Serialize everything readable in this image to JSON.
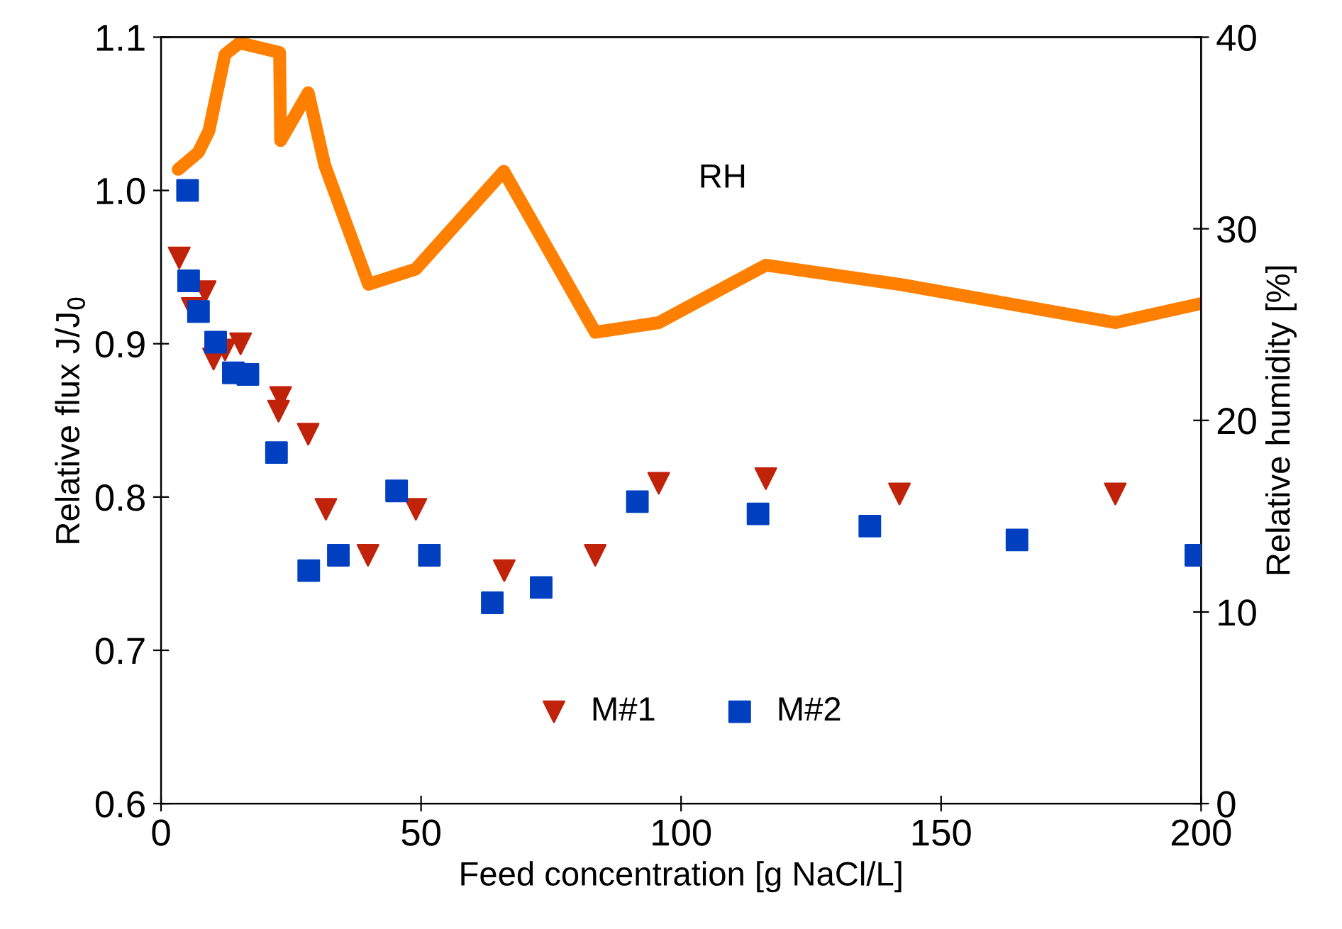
{
  "chart_data": {
    "type": "scatter",
    "xlabel": "Feed concentration [g NaCl/L]",
    "ylabel": "Relative flux J/J$_{0}$",
    "y2label": "Relative humidity [%]",
    "xlim": [
      0,
      200
    ],
    "xticks": [
      0,
      50,
      100,
      150,
      200
    ],
    "ylim": [
      0.6,
      1.1
    ],
    "yticks": [
      0.6,
      0.7,
      0.8,
      0.9,
      {
        "value": 1.0,
        "label": "1.0"
      },
      1.1
    ],
    "y2lim": [
      0,
      40
    ],
    "y2ticks": [
      0,
      10,
      20,
      30,
      40
    ],
    "grid": false,
    "legend": "bottom",
    "annotations": [
      "RH"
    ],
    "series": [
      {
        "name": "M#1",
        "marker": "triangle",
        "color": "#c0220a",
        "x": [
          3.5,
          6,
          8.5,
          10.1,
          12.3,
          15.3,
          22.6,
          23,
          28.3,
          31.7,
          39.8,
          49,
          66,
          83.5,
          95.7,
          116.3,
          142,
          183.5
        ],
        "values": [
          0.956,
          0.923,
          0.934,
          0.89,
          0.896,
          0.9,
          0.856,
          0.865,
          0.841,
          0.792,
          0.762,
          0.792,
          0.752,
          0.762,
          0.809,
          0.812,
          0.802,
          0.802
        ]
      },
      {
        "name": "M#2",
        "marker": "square",
        "color": "#0040c0",
        "x": [
          5.1,
          5.3,
          7.2,
          10.5,
          13.9,
          16.7,
          22.2,
          28.4,
          34.1,
          45.3,
          51.6,
          63.7,
          73.1,
          91.6,
          114.8,
          136.3,
          164.6,
          199
        ],
        "values": [
          1.0,
          0.941,
          0.921,
          0.901,
          0.881,
          0.88,
          0.829,
          0.752,
          0.762,
          0.804,
          0.762,
          0.731,
          0.741,
          0.797,
          0.789,
          0.781,
          0.772,
          0.762
        ]
      },
      {
        "type": "line",
        "axis": "y2",
        "marker": "none",
        "line_style": "solid",
        "color": "#ff8000",
        "x": [
          3.3,
          7.2,
          9.2,
          12.3,
          15.1,
          22.8,
          23,
          28.3,
          31.5,
          39.9,
          49,
          65.9,
          83.5,
          95.7,
          116.3,
          142,
          183.5,
          200
        ],
        "values": [
          33.1,
          34.0,
          35.1,
          39.1,
          39.7,
          39.2,
          34.6,
          37.1,
          33.3,
          27.1,
          27.9,
          33.0,
          24.6,
          25.1,
          28.1,
          27.1,
          25.1,
          26.1
        ]
      }
    ]
  }
}
